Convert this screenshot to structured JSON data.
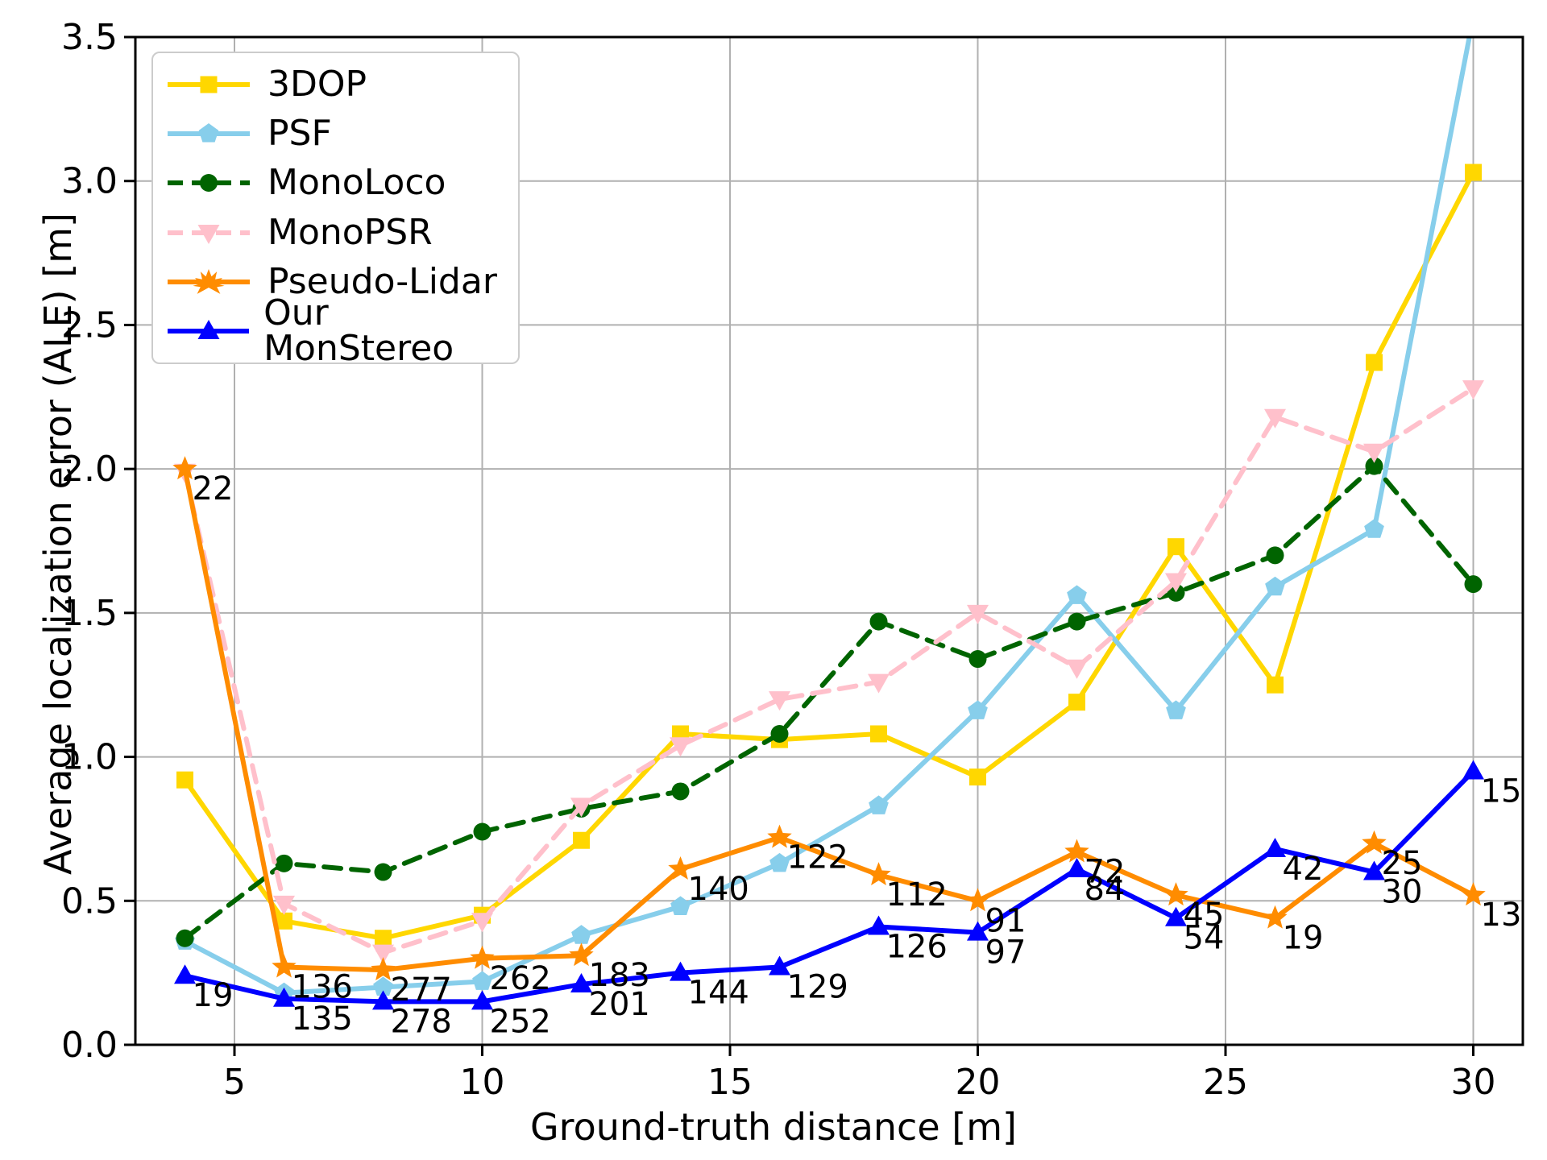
{
  "chart_data": {
    "type": "line",
    "title": "",
    "xlabel": "Ground-truth distance [m]",
    "ylabel": "Average localization error (ALE) [m]",
    "x": [
      4,
      6,
      8,
      10,
      12,
      14,
      16,
      18,
      20,
      22,
      24,
      26,
      28,
      30
    ],
    "xlim": [
      3.0,
      31.0
    ],
    "ylim": [
      0.0,
      3.5
    ],
    "xticks": [
      "5",
      "10",
      "15",
      "20",
      "25",
      "30"
    ],
    "xtick_values": [
      5,
      10,
      15,
      20,
      25,
      30
    ],
    "yticks": [
      "0.0",
      "0.5",
      "1.0",
      "1.5",
      "2.0",
      "2.5",
      "3.0",
      "3.5"
    ],
    "ytick_values": [
      0.0,
      0.5,
      1.0,
      1.5,
      2.0,
      2.5,
      3.0,
      3.5
    ],
    "grid": true,
    "grid_color": "#b0b0b0",
    "legend_position": "upper-left",
    "series": [
      {
        "name": "3DOP",
        "color": "#FFD700",
        "marker": "square",
        "dash": "solid",
        "values": [
          0.92,
          0.43,
          0.37,
          0.45,
          0.71,
          1.08,
          1.06,
          1.08,
          0.93,
          1.19,
          1.73,
          1.25,
          2.37,
          3.03
        ]
      },
      {
        "name": "PSF",
        "color": "#87CEEB",
        "marker": "pentagon",
        "dash": "solid",
        "values": [
          0.36,
          0.18,
          0.2,
          0.22,
          0.38,
          0.48,
          0.63,
          0.83,
          1.16,
          1.56,
          1.16,
          1.59,
          1.79,
          3.57
        ]
      },
      {
        "name": "MonoLoco",
        "color": "#006400",
        "marker": "circle",
        "dash": "dashed",
        "values": [
          0.37,
          0.63,
          0.6,
          0.74,
          0.82,
          0.88,
          1.08,
          1.47,
          1.34,
          1.47,
          1.57,
          1.7,
          2.01,
          1.6
        ]
      },
      {
        "name": "MonoPSR",
        "color": "#FFC0CB",
        "marker": "triangle-down",
        "dash": "dashed",
        "values": [
          1.99,
          0.49,
          0.32,
          0.43,
          0.83,
          1.04,
          1.2,
          1.26,
          1.5,
          1.31,
          1.61,
          2.18,
          2.06,
          2.28
        ]
      },
      {
        "name": "Pseudo-Lidar",
        "color": "#FF8C00",
        "marker": "star",
        "dash": "solid",
        "values": [
          2.0,
          0.27,
          0.26,
          0.3,
          0.31,
          0.61,
          0.72,
          0.59,
          0.5,
          0.67,
          0.52,
          0.44,
          0.7,
          0.52
        ]
      },
      {
        "name": "Our MonStereo",
        "color": "#0000FF",
        "marker": "triangle-up",
        "dash": "solid",
        "values": [
          0.24,
          0.16,
          0.15,
          0.15,
          0.21,
          0.25,
          0.27,
          0.41,
          0.39,
          0.61,
          0.44,
          0.68,
          0.6,
          0.95
        ]
      }
    ],
    "annotations": [
      {
        "series": "Pseudo-Lidar",
        "counts": [
          "22",
          "136",
          "277",
          "262",
          "183",
          "140",
          "122",
          "112",
          "91",
          "72",
          "45",
          "19",
          "25",
          "13"
        ]
      },
      {
        "series": "Our MonStereo",
        "counts": [
          "19",
          "135",
          "278",
          "252",
          "201",
          "144",
          "129",
          "126",
          "97",
          "84",
          "54",
          "42",
          "30",
          "15"
        ]
      }
    ]
  }
}
